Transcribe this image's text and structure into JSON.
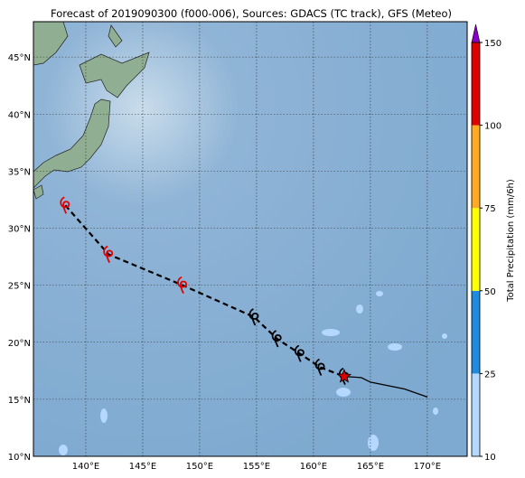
{
  "map": {
    "title": "Forecast of 2019090300 (f000-006), Sources: GDACS (TC track), GFS (Meteo)",
    "xlim": [
      135.4,
      173.5
    ],
    "ylim": [
      10,
      48.1
    ],
    "xticks": [
      {
        "value": 140,
        "label": "140°E"
      },
      {
        "value": 145,
        "label": "145°E"
      },
      {
        "value": 150,
        "label": "150°E"
      },
      {
        "value": 155,
        "label": "155°E"
      },
      {
        "value": 160,
        "label": "160°E"
      },
      {
        "value": 165,
        "label": "165°E"
      },
      {
        "value": 170,
        "label": "170°E"
      }
    ],
    "yticks": [
      {
        "value": 10,
        "label": "10°N"
      },
      {
        "value": 15,
        "label": "15°N"
      },
      {
        "value": 20,
        "label": "20°N"
      },
      {
        "value": 25,
        "label": "25°N"
      },
      {
        "value": 30,
        "label": "30°N"
      },
      {
        "value": 35,
        "label": "35°N"
      },
      {
        "value": 40,
        "label": "40°N"
      },
      {
        "value": 45,
        "label": "45°N"
      }
    ],
    "past_track": {
      "lon": [
        138.2,
        142.0,
        148.5,
        154.8,
        156.8,
        158.8,
        160.6,
        162.7
      ],
      "lat": [
        32.0,
        27.7,
        25.0,
        22.2,
        20.3,
        19.0,
        17.8,
        17.0
      ],
      "colors": [
        "#e00000",
        "#e00000",
        "#e00000",
        "#000000",
        "#000000",
        "#000000",
        "#000000",
        "#000000"
      ]
    },
    "forecast_track": {
      "lon": [
        162.7,
        164.2,
        165.0,
        168.0,
        170.0
      ],
      "lat": [
        17.0,
        16.9,
        16.5,
        15.9,
        15.2
      ]
    },
    "current_position": {
      "lon": 162.7,
      "lat": 17.0
    },
    "colorbar": {
      "label": "Total Precipitation (mm/6h)",
      "ticks": [
        10,
        25,
        50,
        75,
        100,
        150
      ],
      "colors": [
        "#b4d8ff",
        "#1e8ae0",
        "#ffff00",
        "#ffaa22",
        "#e00000"
      ],
      "extend_color": "#8a00c8"
    }
  }
}
